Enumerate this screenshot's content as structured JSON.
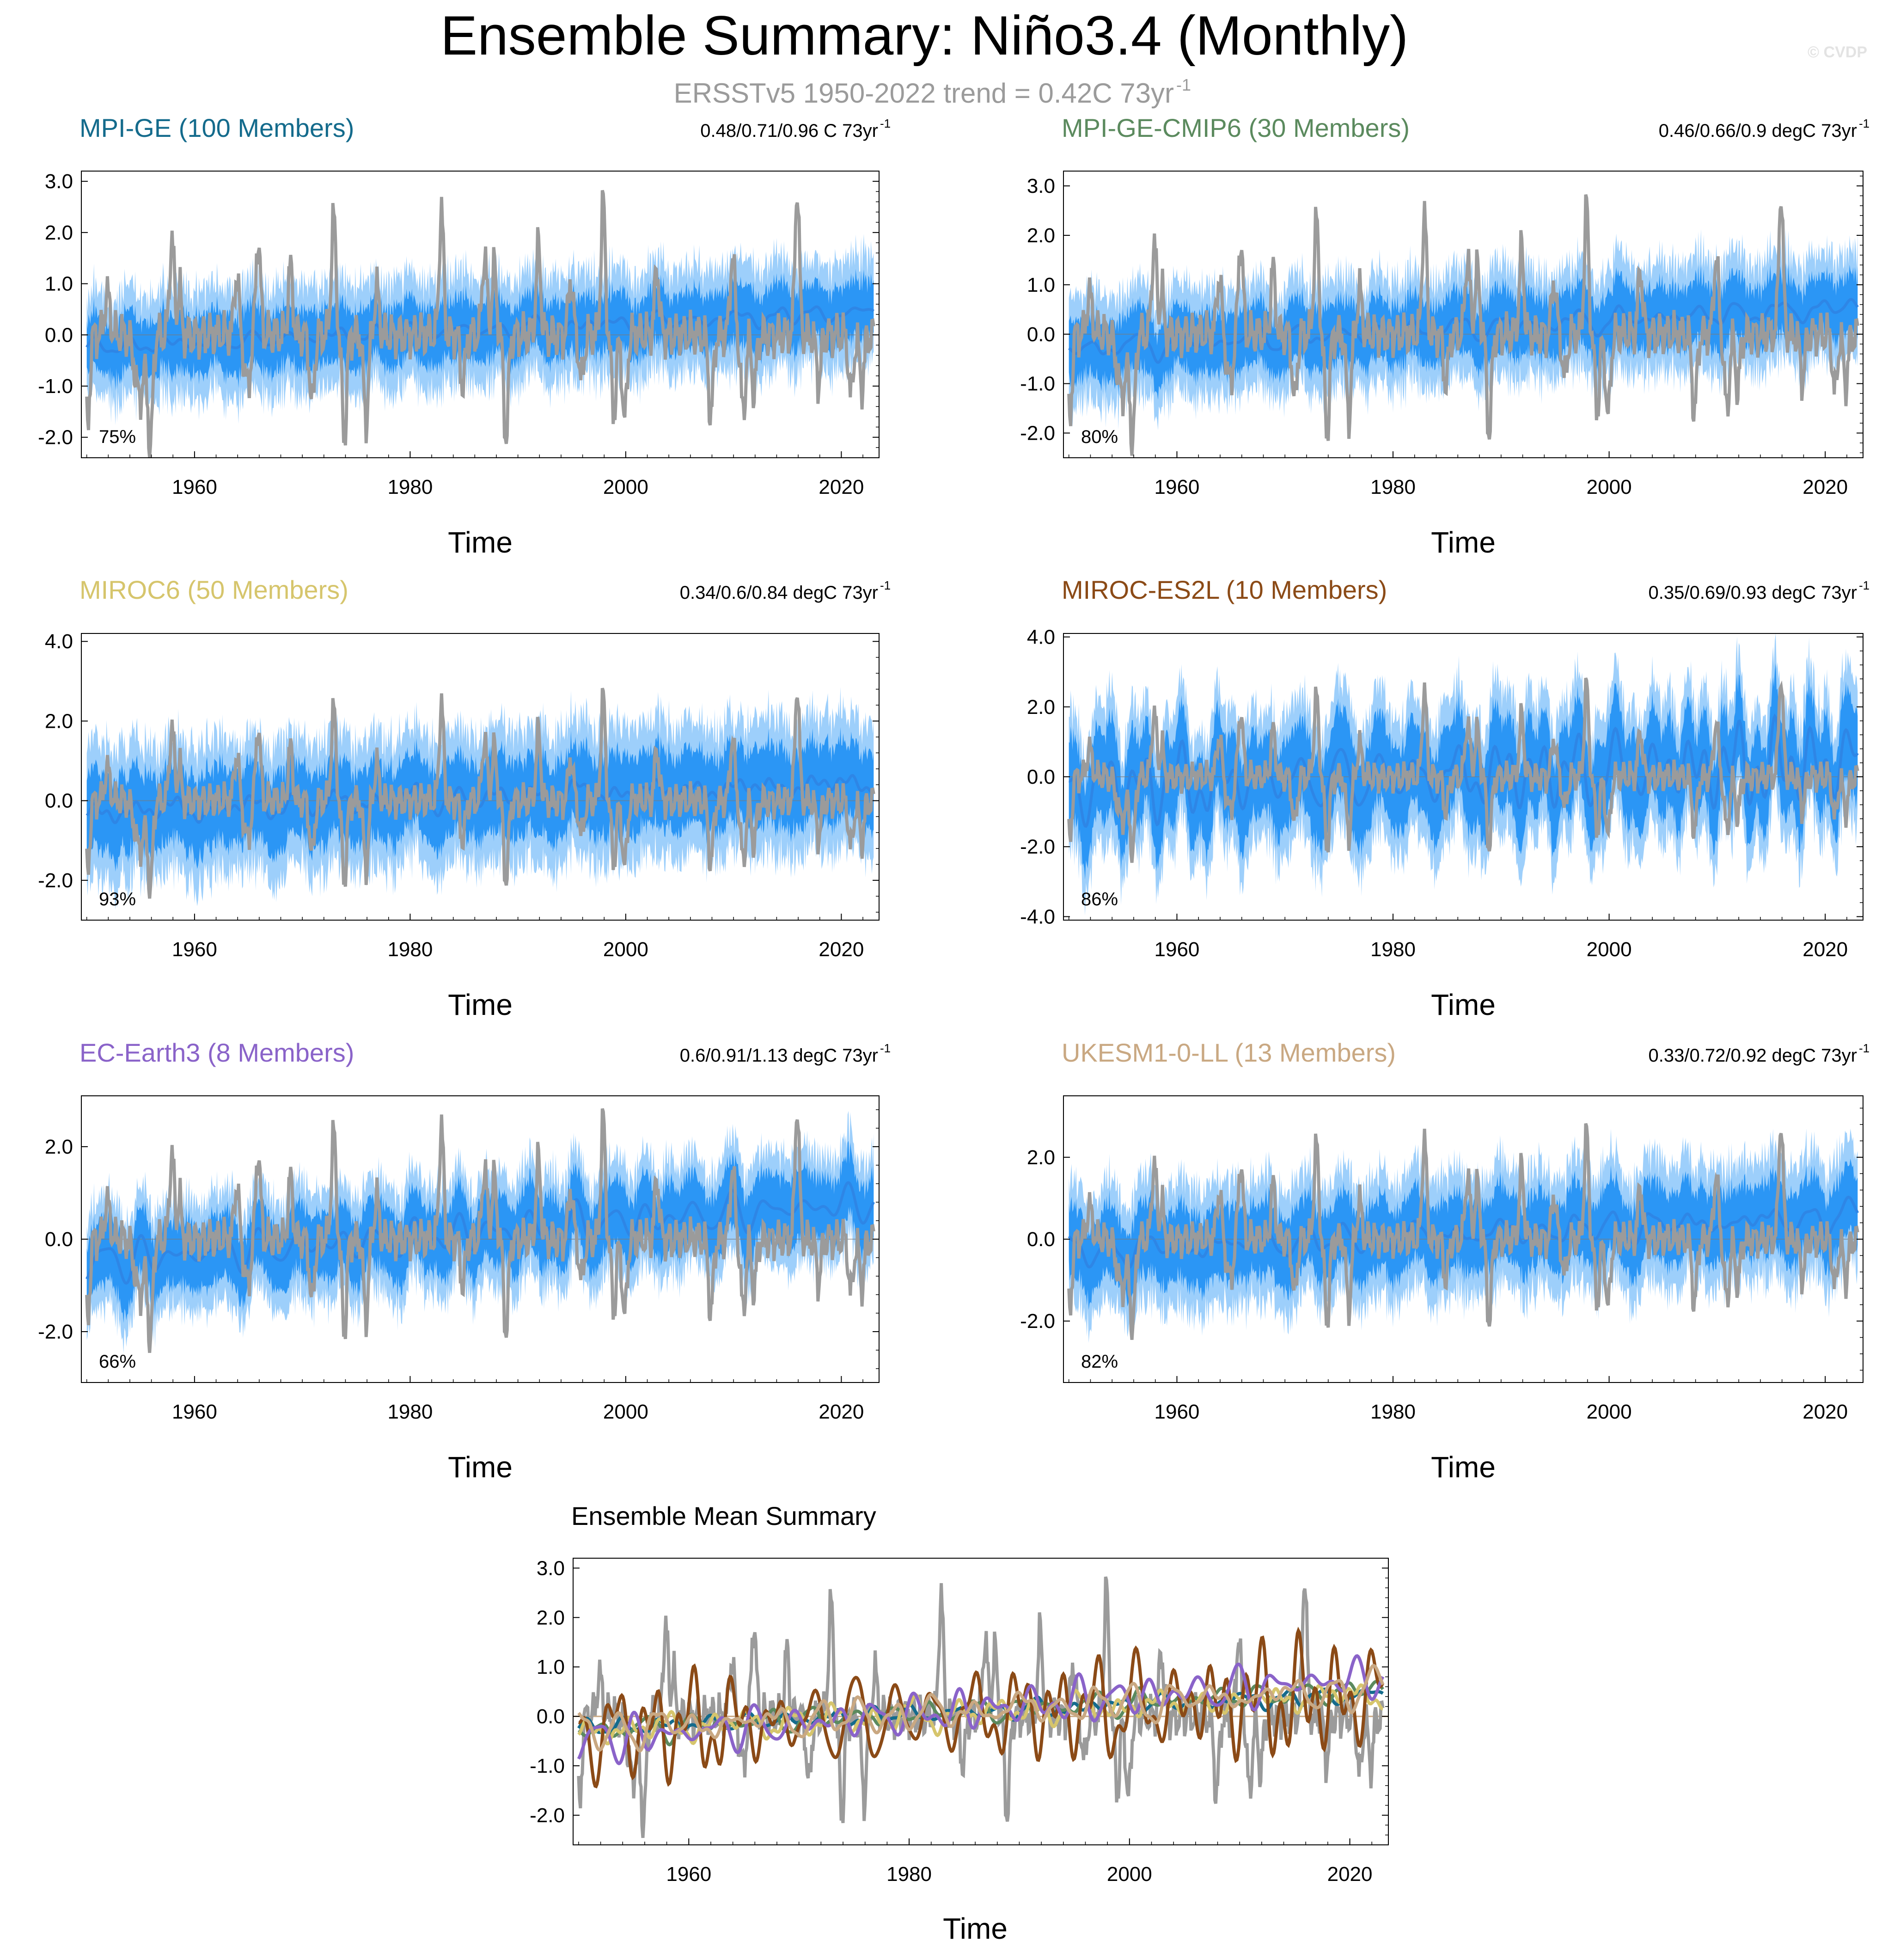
{
  "page": {
    "title": "Ensemble Summary: Niño3.4 (Monthly)",
    "subtitle_main": "ERSSTv5 1950-2022 trend = 0.42C 73yr",
    "subtitle_sup": "-1",
    "watermark": "© CVDP"
  },
  "colors": {
    "observed": "#9b9b9b",
    "envelope_outer": "#9dcffb",
    "envelope_inner": "#2b96f5",
    "ensemble_mean": "#2e86e6"
  },
  "x_axis": {
    "label": "Time",
    "ticks": [
      1960,
      1980,
      2000,
      2020
    ],
    "tick_labels": [
      "1960",
      "1980",
      "2000",
      "2020"
    ],
    "range": [
      1949.5,
      2023.5
    ]
  },
  "chart_data": [
    {
      "type": "area",
      "title": "MPI-GE (100 Members)",
      "title_color": "#146b8c",
      "trend_text": "0.48/0.71/0.96 C 73yr",
      "trend_sup": "-1",
      "rank_text": "75%",
      "xlabel": "Time",
      "ylabel": "",
      "ylim": [
        -2.4,
        3.2
      ],
      "y_ticks": [
        3,
        2,
        1,
        0,
        -1,
        -2
      ],
      "y_tick_labels": [
        "3.0",
        "2.0",
        "1.0",
        "0.0",
        "-1.0",
        "-2.0"
      ],
      "series": [
        {
          "name": "ERSSTv5 observed",
          "role": "obs"
        },
        {
          "name": "ensemble range (outer)",
          "role": "outer",
          "spread": 1.05
        },
        {
          "name": "ensemble range (inner)",
          "role": "inner",
          "spread": 0.55
        },
        {
          "name": "ensemble mean",
          "role": "mean",
          "start": -0.25,
          "end": 0.45,
          "var": 0.15
        }
      ]
    },
    {
      "type": "area",
      "title": "MPI-GE-CMIP6 (30 Members)",
      "title_color": "#5b8a5e",
      "trend_text": "0.46/0.66/0.9 degC 73yr",
      "trend_sup": "-1",
      "rank_text": "80%",
      "xlabel": "Time",
      "ylabel": "",
      "ylim": [
        -2.5,
        3.3
      ],
      "y_ticks": [
        3,
        2,
        1,
        0,
        -1,
        -2
      ],
      "y_tick_labels": [
        "3.0",
        "2.0",
        "1.0",
        "0.0",
        "-1.0",
        "-2.0"
      ],
      "series": [
        {
          "name": "ERSSTv5 observed",
          "role": "obs"
        },
        {
          "name": "ensemble range (outer)",
          "role": "outer",
          "spread": 1.1
        },
        {
          "name": "ensemble range (inner)",
          "role": "inner",
          "spread": 0.6
        },
        {
          "name": "ensemble mean",
          "role": "mean",
          "start": -0.3,
          "end": 0.55,
          "var": 0.2
        }
      ]
    },
    {
      "type": "area",
      "title": "MIROC6 (50 Members)",
      "title_color": "#d6c56c",
      "trend_text": "0.34/0.6/0.84 degC 73yr",
      "trend_sup": "-1",
      "rank_text": "93%",
      "xlabel": "Time",
      "ylabel": "",
      "ylim": [
        -3.0,
        4.2
      ],
      "y_ticks": [
        4,
        2,
        0,
        -2
      ],
      "y_tick_labels": [
        "4.0",
        "2.0",
        "0.0",
        "-2.0"
      ],
      "series": [
        {
          "name": "ERSSTv5 observed",
          "role": "obs"
        },
        {
          "name": "ensemble range (outer)",
          "role": "outer",
          "spread": 1.7
        },
        {
          "name": "ensemble range (inner)",
          "role": "inner",
          "spread": 0.95
        },
        {
          "name": "ensemble mean",
          "role": "mean",
          "start": -0.3,
          "end": 0.45,
          "var": 0.25
        }
      ]
    },
    {
      "type": "area",
      "title": "MIROC-ES2L (10 Members)",
      "title_color": "#8b4a16",
      "trend_text": "0.35/0.69/0.93 degC 73yr",
      "trend_sup": "-1",
      "rank_text": "86%",
      "xlabel": "Time",
      "ylabel": "",
      "ylim": [
        -4.1,
        4.1
      ],
      "y_ticks": [
        4,
        2,
        0,
        -2,
        -4
      ],
      "y_tick_labels": [
        "4.0",
        "2.0",
        "0.0",
        "-2.0",
        "-4.0"
      ],
      "series": [
        {
          "name": "ERSSTv5 observed",
          "role": "obs"
        },
        {
          "name": "ensemble range (outer)",
          "role": "outer",
          "spread": 2.0
        },
        {
          "name": "ensemble range (inner)",
          "role": "inner",
          "spread": 1.2
        },
        {
          "name": "ensemble mean",
          "role": "mean",
          "start": -0.3,
          "end": 0.4,
          "var": 0.85
        }
      ]
    },
    {
      "type": "area",
      "title": "EC-Earth3 (8 Members)",
      "title_color": "#8a63c9",
      "trend_text": "0.6/0.91/1.13 degC 73yr",
      "trend_sup": "-1",
      "rank_text": "66%",
      "xlabel": "Time",
      "ylabel": "",
      "ylim": [
        -3.1,
        3.1
      ],
      "y_ticks": [
        2,
        0,
        -2
      ],
      "y_tick_labels": [
        "2.0",
        "0.0",
        "-2.0"
      ],
      "series": [
        {
          "name": "ERSSTv5 observed",
          "role": "obs"
        },
        {
          "name": "ensemble range (outer)",
          "role": "outer",
          "spread": 1.2
        },
        {
          "name": "ensemble range (inner)",
          "role": "inner",
          "spread": 0.7
        },
        {
          "name": "ensemble mean",
          "role": "mean",
          "start": -0.5,
          "end": 0.8,
          "var": 0.35
        }
      ]
    },
    {
      "type": "area",
      "title": "UKESM1-0-LL (13 Members)",
      "title_color": "#c9a882",
      "trend_text": "0.33/0.72/0.92 degC 73yr",
      "trend_sup": "-1",
      "rank_text": "82%",
      "xlabel": "Time",
      "ylabel": "",
      "ylim": [
        -3.5,
        3.5
      ],
      "y_ticks": [
        2,
        0,
        -2
      ],
      "y_tick_labels": [
        "2.0",
        "0.0",
        "-2.0"
      ],
      "series": [
        {
          "name": "ERSSTv5 observed",
          "role": "obs"
        },
        {
          "name": "ensemble range (outer)",
          "role": "outer",
          "spread": 1.5
        },
        {
          "name": "ensemble range (inner)",
          "role": "inner",
          "spread": 0.85
        },
        {
          "name": "ensemble mean",
          "role": "mean",
          "start": -0.3,
          "end": 0.55,
          "var": 0.3
        }
      ]
    },
    {
      "type": "line",
      "title": "Ensemble Mean Summary",
      "title_color": "#000000",
      "xlabel": "Time",
      "ylabel": "",
      "ylim": [
        -2.6,
        3.2
      ],
      "y_ticks": [
        3,
        2,
        1,
        0,
        -1,
        -2
      ],
      "y_tick_labels": [
        "3.0",
        "2.0",
        "1.0",
        "0.0",
        "-1.0",
        "-2.0"
      ],
      "series": [
        {
          "name": "ERSSTv5",
          "color": "#9b9b9b",
          "role": "obs"
        },
        {
          "name": "MPI-GE",
          "color": "#146b8c",
          "start": -0.25,
          "end": 0.45,
          "var": 0.15
        },
        {
          "name": "MPI-GE-CMIP6",
          "color": "#5b8a5e",
          "start": -0.3,
          "end": 0.55,
          "var": 0.2
        },
        {
          "name": "MIROC6",
          "color": "#d6c56c",
          "start": -0.3,
          "end": 0.45,
          "var": 0.25
        },
        {
          "name": "MIROC-ES2L",
          "color": "#8b4a16",
          "start": -0.3,
          "end": 0.4,
          "var": 0.85
        },
        {
          "name": "EC-Earth3",
          "color": "#8a63c9",
          "start": -0.5,
          "end": 0.8,
          "var": 0.35
        },
        {
          "name": "UKESM1-0-LL",
          "color": "#c9a882",
          "start": -0.3,
          "end": 0.55,
          "var": 0.3
        }
      ]
    }
  ]
}
